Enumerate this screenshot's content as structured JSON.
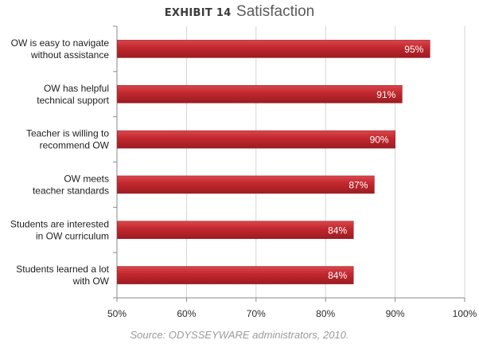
{
  "chart_data": {
    "type": "bar",
    "orientation": "horizontal",
    "title_lead": "EXHIBIT 14",
    "title": "Satisfaction",
    "source": "Source: ODYSSEYWARE administrators, 2010.",
    "categories": [
      [
        "OW is easy to navigate",
        "without assistance"
      ],
      [
        "OW has helpful",
        "technical support"
      ],
      [
        "Teacher is willing to",
        "recommend OW"
      ],
      [
        "OW meets",
        "teacher standards"
      ],
      [
        "Students are interested",
        "in OW curriculum"
      ],
      [
        "Students learned  a lot",
        "with OW"
      ]
    ],
    "values": [
      95,
      91,
      90,
      87,
      84,
      84
    ],
    "value_labels": [
      "95%",
      "91%",
      "90%",
      "87%",
      "84%",
      "84%"
    ],
    "xlim": [
      50,
      100
    ],
    "xticks": [
      50,
      60,
      70,
      80,
      90,
      100
    ],
    "xtick_labels": [
      "50%",
      "60%",
      "70%",
      "80%",
      "90%",
      "100%"
    ],
    "grid": true,
    "bar_color": "#c0272d",
    "bar_color_dark": "#9b1c22",
    "bar_color_light": "#d9474c"
  }
}
